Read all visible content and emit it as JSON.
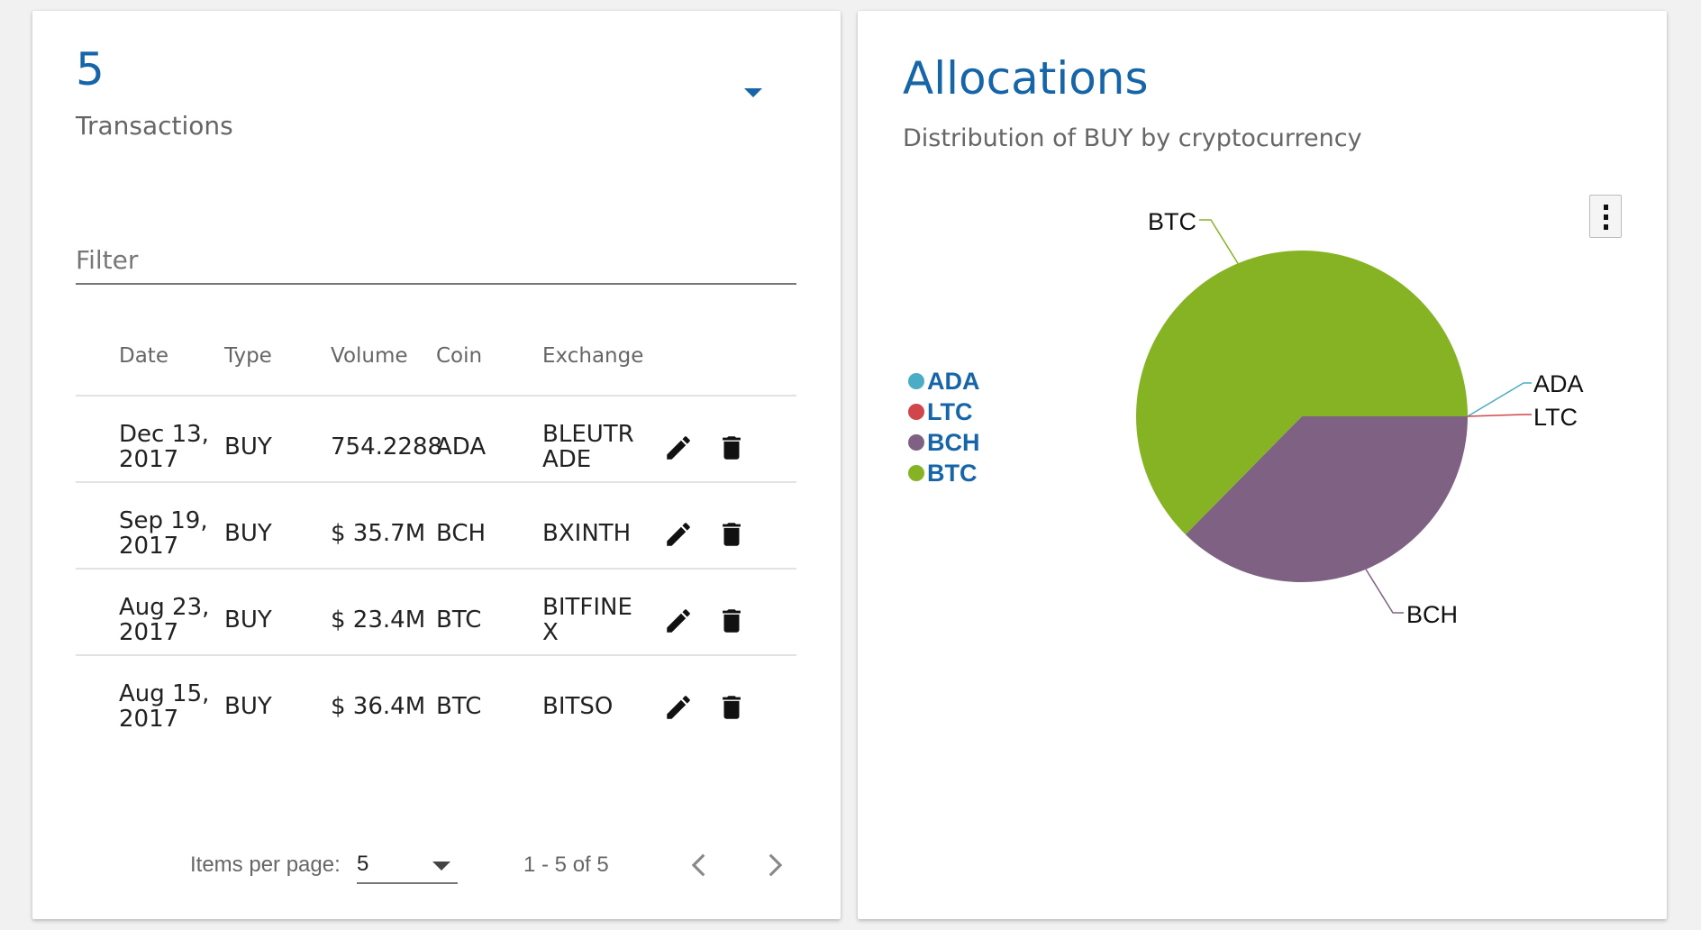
{
  "transactions_card": {
    "count": "5",
    "subtitle": "Transactions",
    "filter_placeholder": "Filter",
    "columns": [
      "Date",
      "Type",
      "Volume",
      "Coin",
      "Exchange"
    ],
    "rows": [
      {
        "date": [
          "Dec 13,",
          "2017"
        ],
        "type": "BUY",
        "volume": "754.2288",
        "coin": "ADA",
        "exchange": [
          "BLEUTR",
          "ADE"
        ]
      },
      {
        "date": [
          "Sep 19,",
          "2017"
        ],
        "type": "BUY",
        "volume": "$ 35.7M",
        "coin": "BCH",
        "exchange": [
          "BXINTH"
        ]
      },
      {
        "date": [
          "Aug 23,",
          "2017"
        ],
        "type": "BUY",
        "volume": "$ 23.4M",
        "coin": "BTC",
        "exchange": [
          "BITFINE",
          "X"
        ]
      },
      {
        "date": [
          "Aug 15,",
          "2017"
        ],
        "type": "BUY",
        "volume": "$ 36.4M",
        "coin": "BTC",
        "exchange": [
          "BITSO"
        ]
      }
    ],
    "row_action_icons": [
      "pencil-icon",
      "trash-icon"
    ],
    "paginator": {
      "items_per_page_label": "Items per page:",
      "items_per_page_value": "5",
      "range_label": "1 - 5 of 5",
      "prev_icon": "chevron-left-icon",
      "next_icon": "chevron-right-icon"
    }
  },
  "allocations_card": {
    "title": "Allocations",
    "subtitle": "Distribution of BUY by cryptocurrency",
    "menu_icon": "more-vertical-icon",
    "chart_data": {
      "type": "pie",
      "categories": [
        "ADA",
        "LTC",
        "BCH",
        "BTC"
      ],
      "values": [
        0.0,
        0.0,
        35.7,
        59.8
      ],
      "colors": [
        "#4bacc6",
        "#d0464a",
        "#7e6183",
        "#86b324"
      ],
      "legend": [
        "ADA",
        "LTC",
        "BCH",
        "BTC"
      ],
      "legend_position": "left"
    }
  }
}
